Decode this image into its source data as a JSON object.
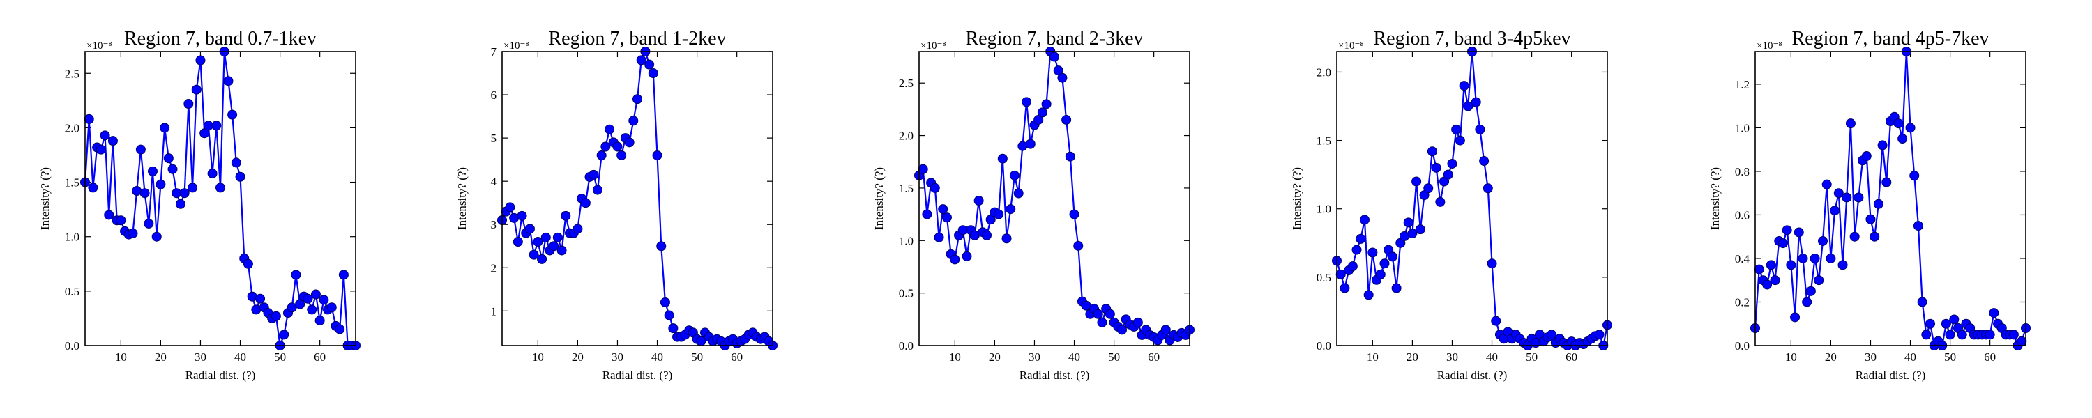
{
  "chart_data": [
    {
      "type": "line",
      "title": "Region 7, band 0.7-1kev",
      "xlabel": "Radial dist. (?)",
      "ylabel": "Intensity? (?)",
      "y_offset_label": "×10⁻⁸",
      "xlim": [
        1,
        69
      ],
      "ylim": [
        0,
        2.7
      ],
      "xticks": [
        10,
        20,
        30,
        40,
        50,
        60
      ],
      "yticks": [
        0.0,
        0.5,
        1.0,
        1.5,
        2.0,
        2.5
      ],
      "ytick_labels": [
        "0.0",
        "0.5",
        "1.0",
        "1.5",
        "2.0",
        "2.5"
      ],
      "color": "#0000ff",
      "series": [
        {
          "x": [
            1,
            2,
            3,
            4,
            5,
            6,
            7,
            8,
            9,
            10,
            11,
            12,
            13,
            14,
            15,
            16,
            17,
            18,
            19,
            20,
            21,
            22,
            23,
            24,
            25,
            26,
            27,
            28,
            29,
            30,
            31,
            32,
            33,
            34,
            35,
            36,
            37,
            38,
            39,
            40,
            41,
            42,
            43,
            44,
            45,
            46,
            47,
            48,
            49,
            50,
            51,
            52,
            53,
            54,
            55,
            56,
            57,
            58,
            59,
            60,
            61,
            62,
            63,
            64,
            65,
            66,
            67,
            68,
            69
          ],
          "y": [
            1.5,
            2.08,
            1.45,
            1.82,
            1.8,
            1.93,
            1.2,
            1.88,
            1.15,
            1.15,
            1.05,
            1.02,
            1.03,
            1.42,
            1.8,
            1.4,
            1.12,
            1.6,
            1.0,
            1.48,
            2.0,
            1.72,
            1.62,
            1.4,
            1.3,
            1.4,
            2.22,
            1.45,
            2.35,
            2.62,
            1.95,
            2.02,
            1.58,
            2.02,
            1.45,
            2.7,
            2.43,
            2.12,
            1.68,
            1.55,
            0.8,
            0.75,
            0.45,
            0.33,
            0.43,
            0.35,
            0.3,
            0.25,
            0.27,
            0.0,
            0.1,
            0.3,
            0.35,
            0.65,
            0.38,
            0.45,
            0.43,
            0.33,
            0.47,
            0.23,
            0.42,
            0.33,
            0.35,
            0.18,
            0.15,
            0.65,
            0.0,
            0.0,
            0.0
          ]
        }
      ]
    },
    {
      "type": "line",
      "title": "Region 7, band 1-2kev",
      "xlabel": "Radial dist. (?)",
      "ylabel": "Intensity? (?)",
      "y_offset_label": "×10⁻⁸",
      "xlim": [
        1,
        69
      ],
      "ylim": [
        0.2,
        7.0
      ],
      "xticks": [
        10,
        20,
        30,
        40,
        50,
        60
      ],
      "yticks": [
        1,
        2,
        3,
        4,
        5,
        6,
        7
      ],
      "ytick_labels": [
        "1",
        "2",
        "3",
        "4",
        "5",
        "6",
        "7"
      ],
      "color": "#0000ff",
      "series": [
        {
          "x": [
            1,
            2,
            3,
            4,
            5,
            6,
            7,
            8,
            9,
            10,
            11,
            12,
            13,
            14,
            15,
            16,
            17,
            18,
            19,
            20,
            21,
            22,
            23,
            24,
            25,
            26,
            27,
            28,
            29,
            30,
            31,
            32,
            33,
            34,
            35,
            36,
            37,
            38,
            39,
            40,
            41,
            42,
            43,
            44,
            45,
            46,
            47,
            48,
            49,
            50,
            51,
            52,
            53,
            54,
            55,
            56,
            57,
            58,
            59,
            60,
            61,
            62,
            63,
            64,
            65,
            66,
            67,
            68,
            69
          ],
          "y": [
            3.1,
            3.3,
            3.4,
            3.15,
            2.6,
            3.2,
            2.8,
            2.9,
            2.3,
            2.6,
            2.2,
            2.7,
            2.4,
            2.5,
            2.7,
            2.4,
            3.2,
            2.8,
            2.8,
            2.9,
            3.6,
            3.5,
            4.1,
            4.15,
            3.8,
            4.6,
            4.8,
            5.2,
            4.9,
            4.8,
            4.6,
            5.0,
            4.9,
            5.4,
            5.9,
            6.8,
            7.0,
            6.7,
            6.5,
            4.6,
            2.5,
            1.2,
            0.9,
            0.6,
            0.4,
            0.4,
            0.45,
            0.55,
            0.5,
            0.35,
            0.3,
            0.5,
            0.4,
            0.3,
            0.35,
            0.3,
            0.2,
            0.3,
            0.35,
            0.25,
            0.3,
            0.35,
            0.45,
            0.5,
            0.4,
            0.35,
            0.4,
            0.3,
            0.2
          ]
        }
      ]
    },
    {
      "type": "line",
      "title": "Region 7, band 2-3kev",
      "xlabel": "Radial dist. (?)",
      "ylabel": "Intensity? (?)",
      "y_offset_label": "×10⁻⁸",
      "xlim": [
        1,
        69
      ],
      "ylim": [
        0,
        2.8
      ],
      "xticks": [
        10,
        20,
        30,
        40,
        50,
        60
      ],
      "yticks": [
        0.0,
        0.5,
        1.0,
        1.5,
        2.0,
        2.5
      ],
      "ytick_labels": [
        "0.0",
        "0.5",
        "1.0",
        "1.5",
        "2.0",
        "2.5"
      ],
      "color": "#0000ff",
      "series": [
        {
          "x": [
            1,
            2,
            3,
            4,
            5,
            6,
            7,
            8,
            9,
            10,
            11,
            12,
            13,
            14,
            15,
            16,
            17,
            18,
            19,
            20,
            21,
            22,
            23,
            24,
            25,
            26,
            27,
            28,
            29,
            30,
            31,
            32,
            33,
            34,
            35,
            36,
            37,
            38,
            39,
            40,
            41,
            42,
            43,
            44,
            45,
            46,
            47,
            48,
            49,
            50,
            51,
            52,
            53,
            54,
            55,
            56,
            57,
            58,
            59,
            60,
            61,
            62,
            63,
            64,
            65,
            66,
            67,
            68,
            69
          ],
          "y": [
            1.62,
            1.68,
            1.25,
            1.55,
            1.5,
            1.03,
            1.3,
            1.22,
            0.87,
            0.82,
            1.05,
            1.1,
            0.85,
            1.1,
            1.05,
            1.38,
            1.08,
            1.05,
            1.2,
            1.27,
            1.25,
            1.78,
            1.02,
            1.3,
            1.62,
            1.45,
            1.9,
            2.32,
            1.92,
            2.1,
            2.15,
            2.22,
            2.3,
            2.8,
            2.75,
            2.62,
            2.55,
            2.15,
            1.8,
            1.25,
            0.95,
            0.42,
            0.38,
            0.3,
            0.35,
            0.3,
            0.22,
            0.35,
            0.3,
            0.22,
            0.18,
            0.15,
            0.25,
            0.2,
            0.18,
            0.22,
            0.1,
            0.15,
            0.1,
            0.08,
            0.05,
            0.1,
            0.15,
            0.05,
            0.1,
            0.08,
            0.12,
            0.1,
            0.15
          ]
        }
      ]
    },
    {
      "type": "line",
      "title": "Region 7, band 3-4p5kev",
      "xlabel": "Radial dist. (?)",
      "ylabel": "Intensity? (?)",
      "y_offset_label": "×10⁻⁸",
      "xlim": [
        1,
        69
      ],
      "ylim": [
        0,
        2.15
      ],
      "xticks": [
        10,
        20,
        30,
        40,
        50,
        60
      ],
      "yticks": [
        0.0,
        0.5,
        1.0,
        1.5,
        2.0
      ],
      "ytick_labels": [
        "0.0",
        "0.5",
        "1.0",
        "1.5",
        "2.0"
      ],
      "color": "#0000ff",
      "series": [
        {
          "x": [
            1,
            2,
            3,
            4,
            5,
            6,
            7,
            8,
            9,
            10,
            11,
            12,
            13,
            14,
            15,
            16,
            17,
            18,
            19,
            20,
            21,
            22,
            23,
            24,
            25,
            26,
            27,
            28,
            29,
            30,
            31,
            32,
            33,
            34,
            35,
            36,
            37,
            38,
            39,
            40,
            41,
            42,
            43,
            44,
            45,
            46,
            47,
            48,
            49,
            50,
            51,
            52,
            53,
            54,
            55,
            56,
            57,
            58,
            59,
            60,
            61,
            62,
            63,
            64,
            65,
            66,
            67,
            68,
            69
          ],
          "y": [
            0.62,
            0.52,
            0.42,
            0.55,
            0.58,
            0.7,
            0.78,
            0.92,
            0.37,
            0.68,
            0.48,
            0.52,
            0.6,
            0.7,
            0.65,
            0.42,
            0.75,
            0.8,
            0.9,
            0.82,
            1.2,
            0.85,
            1.1,
            1.15,
            1.42,
            1.3,
            1.05,
            1.2,
            1.25,
            1.33,
            1.58,
            1.5,
            1.9,
            1.75,
            2.15,
            1.78,
            1.58,
            1.35,
            1.15,
            0.6,
            0.18,
            0.08,
            0.05,
            0.1,
            0.05,
            0.08,
            0.05,
            0.02,
            0.0,
            0.05,
            0.02,
            0.08,
            0.03,
            0.06,
            0.08,
            0.02,
            0.05,
            0.02,
            0.0,
            0.03,
            0.0,
            0.02,
            0.01,
            0.03,
            0.05,
            0.07,
            0.08,
            0.0,
            0.15
          ]
        }
      ]
    },
    {
      "type": "line",
      "title": "Region 7, band 4p5-7kev",
      "xlabel": "Radial dist. (?)",
      "ylabel": "Intensity? (?)",
      "y_offset_label": "×10⁻⁸",
      "xlim": [
        1,
        69
      ],
      "ylim": [
        0,
        1.35
      ],
      "xticks": [
        10,
        20,
        30,
        40,
        50,
        60
      ],
      "yticks": [
        0.0,
        0.2,
        0.4,
        0.6,
        0.8,
        1.0,
        1.2
      ],
      "ytick_labels": [
        "0.0",
        "0.2",
        "0.4",
        "0.6",
        "0.8",
        "1.0",
        "1.2"
      ],
      "color": "#0000ff",
      "series": [
        {
          "x": [
            1,
            2,
            3,
            4,
            5,
            6,
            7,
            8,
            9,
            10,
            11,
            12,
            13,
            14,
            15,
            16,
            17,
            18,
            19,
            20,
            21,
            22,
            23,
            24,
            25,
            26,
            27,
            28,
            29,
            30,
            31,
            32,
            33,
            34,
            35,
            36,
            37,
            38,
            39,
            40,
            41,
            42,
            43,
            44,
            45,
            46,
            47,
            48,
            49,
            50,
            51,
            52,
            53,
            54,
            55,
            56,
            57,
            58,
            59,
            60,
            61,
            62,
            63,
            64,
            65,
            66,
            67,
            68,
            69
          ],
          "y": [
            0.08,
            0.35,
            0.3,
            0.28,
            0.37,
            0.3,
            0.48,
            0.47,
            0.53,
            0.37,
            0.13,
            0.52,
            0.4,
            0.2,
            0.25,
            0.4,
            0.3,
            0.48,
            0.74,
            0.4,
            0.62,
            0.7,
            0.37,
            0.68,
            1.02,
            0.5,
            0.68,
            0.85,
            0.87,
            0.58,
            0.5,
            0.65,
            0.92,
            0.75,
            1.03,
            1.05,
            1.02,
            0.95,
            1.35,
            1.0,
            0.78,
            0.55,
            0.2,
            0.05,
            0.1,
            0.0,
            0.02,
            0.0,
            0.1,
            0.05,
            0.12,
            0.08,
            0.05,
            0.1,
            0.08,
            0.05,
            0.05,
            0.05,
            0.05,
            0.05,
            0.15,
            0.1,
            0.08,
            0.05,
            0.05,
            0.05,
            0.0,
            0.02,
            0.08
          ]
        }
      ]
    }
  ]
}
